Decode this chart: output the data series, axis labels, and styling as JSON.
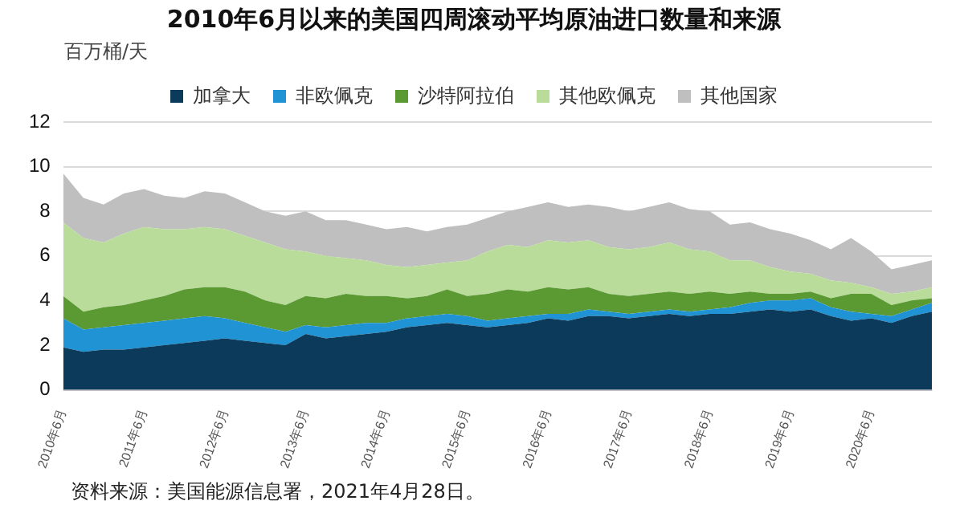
{
  "chart_data": {
    "type": "area",
    "title": "2010年6月以来的美国四周滚动平均原油进口数量和来源",
    "ylabel": "百万桶/天",
    "stacked": true,
    "legend": "top",
    "grid": "y",
    "ylim": [
      0,
      12
    ],
    "yticks": [
      0,
      2,
      4,
      6,
      8,
      10,
      12
    ],
    "annotations": [
      "资料来源：美国能源信息署，2021年4月28日。"
    ],
    "categories": [
      "2010年6月",
      null,
      null,
      null,
      "2011年6月",
      null,
      null,
      null,
      "2012年6月",
      null,
      null,
      null,
      "2013年6月",
      null,
      null,
      null,
      "2014年6月",
      null,
      null,
      null,
      "2015年6月",
      null,
      null,
      null,
      "2016年6月",
      null,
      null,
      null,
      "2017年6月",
      null,
      null,
      null,
      "2018年6月",
      null,
      null,
      null,
      "2019年6月",
      null,
      null,
      null,
      "2020年6月",
      null,
      null,
      null
    ],
    "series": [
      {
        "name": "加拿大",
        "color": "#0b3a5a",
        "values": [
          1.9,
          1.7,
          1.8,
          1.8,
          1.9,
          2.0,
          2.1,
          2.2,
          2.3,
          2.2,
          2.1,
          2.0,
          2.5,
          2.3,
          2.4,
          2.5,
          2.6,
          2.8,
          2.9,
          3.0,
          2.9,
          2.8,
          2.9,
          3.0,
          3.2,
          3.1,
          3.3,
          3.3,
          3.2,
          3.3,
          3.4,
          3.3,
          3.4,
          3.4,
          3.5,
          3.6,
          3.5,
          3.6,
          3.3,
          3.1,
          3.2,
          3.0,
          3.3,
          3.5
        ]
      },
      {
        "name": "非欧佩克",
        "color": "#1f93d4",
        "values": [
          1.3,
          1.0,
          1.0,
          1.1,
          1.1,
          1.1,
          1.1,
          1.1,
          0.9,
          0.8,
          0.7,
          0.6,
          0.4,
          0.5,
          0.5,
          0.5,
          0.4,
          0.4,
          0.4,
          0.4,
          0.4,
          0.3,
          0.3,
          0.3,
          0.2,
          0.3,
          0.3,
          0.2,
          0.2,
          0.2,
          0.2,
          0.2,
          0.2,
          0.3,
          0.4,
          0.4,
          0.5,
          0.5,
          0.4,
          0.4,
          0.2,
          0.3,
          0.3,
          0.4
        ]
      },
      {
        "name": "沙特阿拉伯",
        "color": "#5b9a32",
        "values": [
          1.0,
          0.8,
          0.9,
          0.9,
          1.0,
          1.1,
          1.3,
          1.3,
          1.4,
          1.4,
          1.2,
          1.2,
          1.3,
          1.3,
          1.4,
          1.2,
          1.2,
          0.9,
          0.9,
          1.1,
          0.9,
          1.2,
          1.3,
          1.1,
          1.2,
          1.1,
          1.0,
          0.8,
          0.8,
          0.8,
          0.8,
          0.8,
          0.8,
          0.6,
          0.5,
          0.3,
          0.3,
          0.3,
          0.4,
          0.8,
          0.9,
          0.5,
          0.4,
          0.2
        ]
      },
      {
        "name": "其他欧佩克",
        "color": "#b9dc9a",
        "values": [
          3.3,
          3.3,
          2.9,
          3.2,
          3.3,
          3.0,
          2.7,
          2.7,
          2.6,
          2.5,
          2.6,
          2.5,
          2.0,
          1.9,
          1.6,
          1.6,
          1.4,
          1.4,
          1.4,
          1.2,
          1.6,
          1.9,
          2.0,
          2.0,
          2.1,
          2.1,
          2.1,
          2.1,
          2.1,
          2.1,
          2.2,
          2.0,
          1.8,
          1.5,
          1.4,
          1.2,
          1.0,
          0.8,
          0.8,
          0.5,
          0.3,
          0.5,
          0.4,
          0.5
        ]
      },
      {
        "name": "其他国家",
        "color": "#bfbfbf",
        "values": [
          2.2,
          1.8,
          1.7,
          1.8,
          1.7,
          1.5,
          1.4,
          1.6,
          1.6,
          1.5,
          1.4,
          1.5,
          1.8,
          1.6,
          1.7,
          1.6,
          1.6,
          1.8,
          1.5,
          1.6,
          1.6,
          1.5,
          1.5,
          1.8,
          1.7,
          1.6,
          1.6,
          1.8,
          1.7,
          1.8,
          1.8,
          1.8,
          1.8,
          1.6,
          1.7,
          1.7,
          1.7,
          1.5,
          1.4,
          2.0,
          1.6,
          1.1,
          1.2,
          1.2
        ]
      }
    ]
  }
}
